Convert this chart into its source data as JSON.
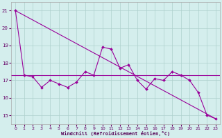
{
  "xlabel": "Windchill (Refroidissement éolien,°C)",
  "background_color": "#d4eeed",
  "grid_color": "#aed0cc",
  "line_color": "#990099",
  "ylim": [
    14.5,
    21.5
  ],
  "xlim": [
    -0.5,
    23.5
  ],
  "yticks": [
    15,
    16,
    17,
    18,
    19,
    20,
    21
  ],
  "xticks": [
    0,
    1,
    2,
    3,
    4,
    5,
    6,
    7,
    8,
    9,
    10,
    11,
    12,
    13,
    14,
    15,
    16,
    17,
    18,
    19,
    20,
    21,
    22,
    23
  ],
  "hours": [
    0,
    1,
    2,
    3,
    4,
    5,
    6,
    7,
    8,
    9,
    10,
    11,
    12,
    13,
    14,
    15,
    16,
    17,
    18,
    19,
    20,
    21,
    22,
    23
  ],
  "windchill": [
    21.0,
    17.3,
    17.2,
    16.6,
    17.0,
    16.8,
    16.6,
    16.9,
    17.5,
    17.3,
    18.9,
    18.8,
    17.7,
    17.9,
    17.0,
    16.5,
    17.1,
    17.0,
    17.5,
    17.3,
    17.0,
    16.3,
    15.0,
    14.8
  ],
  "mean_line_y": 17.3,
  "trend_start": 21.0,
  "trend_end": 14.8
}
